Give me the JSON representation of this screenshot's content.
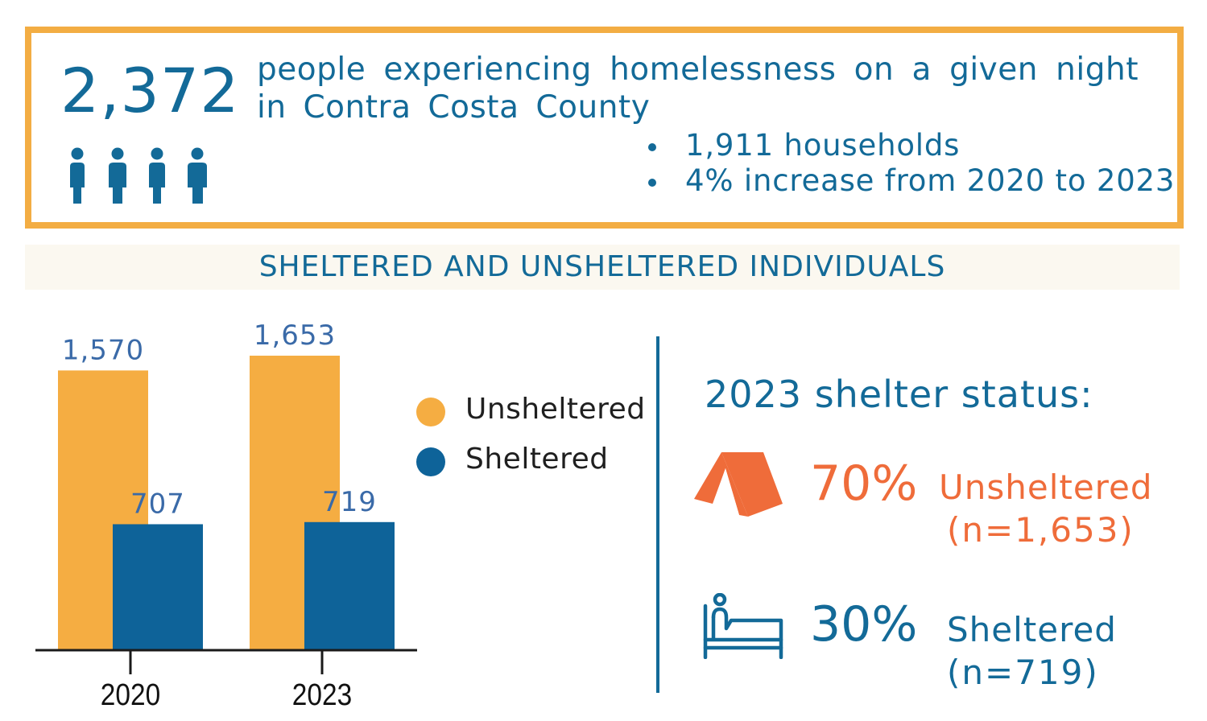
{
  "summary": {
    "total": "2,372",
    "headline": "people experiencing homelessness on a given night in Contra Costa County",
    "bullets": [
      "1,911 households",
      "4% increase from 2020 to 2023"
    ]
  },
  "section_title": "SHELTERED AND UNSHELTERED INDIVIDUALS",
  "chart_data": {
    "type": "bar",
    "title": "SHELTERED AND UNSHELTERED INDIVIDUALS",
    "categories": [
      "2020",
      "2023"
    ],
    "series": [
      {
        "name": "Unsheltered",
        "values": [
          1570,
          1653
        ],
        "labels": [
          "1,570",
          "1,653"
        ],
        "color": "#f5ad42"
      },
      {
        "name": "Sheltered",
        "values": [
          707,
          719
        ],
        "labels": [
          "707",
          "719"
        ],
        "color": "#0e6399"
      }
    ],
    "xlabel": "",
    "ylabel": "",
    "ylim": [
      0,
      1653
    ],
    "grid": false,
    "legend": "right"
  },
  "status": {
    "title": "2023 shelter status:",
    "unsheltered": {
      "percent": "70%",
      "label": "Unsheltered",
      "n": "(n=1,653)",
      "icon": "tent-icon",
      "color": "#ef6c3a"
    },
    "sheltered": {
      "percent": "30%",
      "label": "Sheltered",
      "n": "(n=719)",
      "icon": "bed-icon",
      "color": "#136a98"
    }
  },
  "colors": {
    "brand_blue": "#136a98",
    "label_blue": "#3a6aa8",
    "border_orange": "#f3ad43",
    "band_bg": "#fbf8f0"
  }
}
